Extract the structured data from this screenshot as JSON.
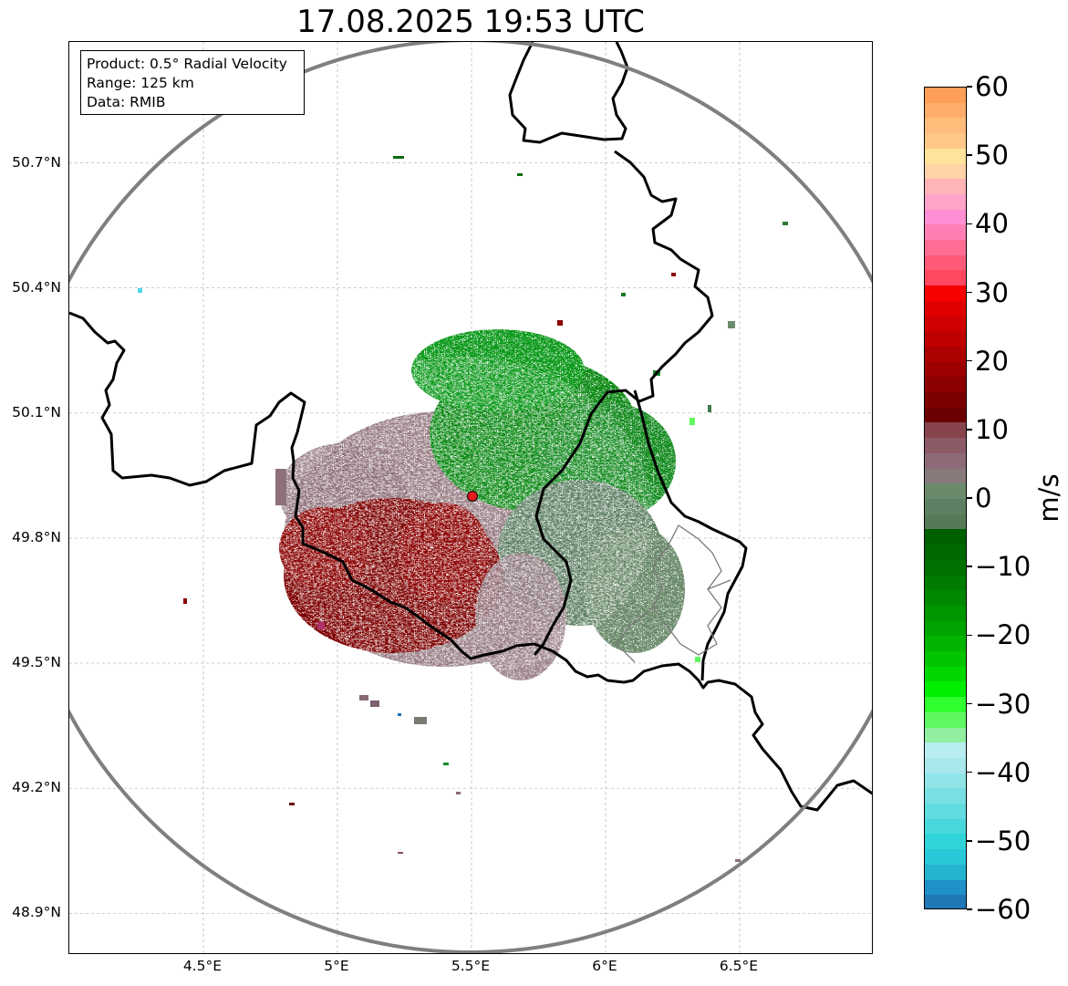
{
  "title": "17.08.2025 19:53 UTC",
  "info": {
    "product": "Product: 0.5° Radial Velocity",
    "range": "Range: 125 km",
    "source": "Data: RMIB"
  },
  "map": {
    "lon_range": [
      4.0,
      7.0
    ],
    "lat_range": [
      48.8,
      50.99
    ],
    "lat_ticks": [
      {
        "value": 50.7,
        "label": "50.7°N"
      },
      {
        "value": 50.4,
        "label": "50.4°N"
      },
      {
        "value": 50.1,
        "label": "50.1°N"
      },
      {
        "value": 49.8,
        "label": "49.8°N"
      },
      {
        "value": 49.5,
        "label": "49.5°N"
      },
      {
        "value": 49.2,
        "label": "49.2°N"
      },
      {
        "value": 48.9,
        "label": "48.9°N"
      }
    ],
    "lon_ticks": [
      {
        "value": 4.5,
        "label": "4.5°E"
      },
      {
        "value": 5.0,
        "label": "5°E"
      },
      {
        "value": 5.5,
        "label": "5.5°E"
      },
      {
        "value": 6.0,
        "label": "6°E"
      },
      {
        "value": 6.5,
        "label": "6.5°E"
      }
    ],
    "radar_site": {
      "lon": 5.505,
      "lat": 49.915
    },
    "range_ring_km": 125,
    "gridlines": true
  },
  "colorbar": {
    "unit": "m/s",
    "min": -60,
    "max": 60,
    "ticks": [
      {
        "value": 60,
        "label": "60"
      },
      {
        "value": 50,
        "label": "50"
      },
      {
        "value": 40,
        "label": "40"
      },
      {
        "value": 30,
        "label": "30"
      },
      {
        "value": 20,
        "label": "20"
      },
      {
        "value": 10,
        "label": "10"
      },
      {
        "value": 0,
        "label": "0"
      },
      {
        "value": -10,
        "label": "−10"
      },
      {
        "value": -20,
        "label": "−20"
      },
      {
        "value": -30,
        "label": "−30"
      },
      {
        "value": -40,
        "label": "−40"
      },
      {
        "value": -50,
        "label": "−50"
      },
      {
        "value": -60,
        "label": "−60"
      }
    ],
    "colors_top_to_bottom": [
      "#ff9e57",
      "#ffad6b",
      "#ffbc7a",
      "#ffc887",
      "#ffe39b",
      "#ffd3a8",
      "#ffb5b7",
      "#ffa3c8",
      "#ff8fd4",
      "#ff7fb5",
      "#ff6d95",
      "#ff5a78",
      "#ff4860",
      "#f70000",
      "#e00000",
      "#d00000",
      "#bf0000",
      "#ad0000",
      "#9c0000",
      "#8b0000",
      "#7a0000",
      "#6a0000",
      "#87444c",
      "#8c5a66",
      "#8d6a78",
      "#887a7a",
      "#6b8a6b",
      "#5e8062",
      "#567a58",
      "#006000",
      "#006800",
      "#007000",
      "#007c00",
      "#008800",
      "#009600",
      "#00a400",
      "#00b400",
      "#00c400",
      "#00d800",
      "#00ee00",
      "#30ff30",
      "#60f860",
      "#90f0a0",
      "#b8eef0",
      "#a8e8ec",
      "#90e4e8",
      "#78e0e4",
      "#60dce0",
      "#48d8dc",
      "#30d4d8",
      "#28c8d8",
      "#24b4d0",
      "#2090c8",
      "#1f77b4"
    ]
  }
}
